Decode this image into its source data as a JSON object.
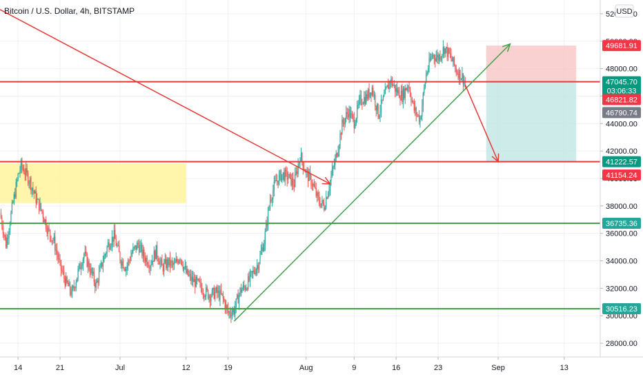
{
  "title": "Bitcoin / U.S. Dollar, 4h, BITSTAMP",
  "currency_button": "USD",
  "colors": {
    "up": "#26a69a",
    "down": "#ef5350",
    "red_line": "#e53935",
    "green_line": "#43a047",
    "yellow_zone": "#fff59d",
    "stop_zone": "#f8c6c6",
    "target_zone": "#bfe6e3",
    "grid": "#eef0f3"
  },
  "chart_data": {
    "type": "candlestick",
    "title": "Bitcoin / U.S. Dollar, 4h, BITSTAMP",
    "ylim": [
      27000,
      53000
    ],
    "y_ticks": [
      "28000.00",
      "30000.00",
      "32000.00",
      "34000.00",
      "36000.00",
      "38000.00",
      "40000.00",
      "42000.00",
      "44000.00",
      "46000.00",
      "48000.00",
      "50000.00",
      "52000.00"
    ],
    "y_tick_values": [
      28000,
      30000,
      32000,
      34000,
      36000,
      38000,
      40000,
      42000,
      44000,
      46000,
      48000,
      50000,
      52000
    ],
    "x_ticks": [
      "14",
      "21",
      "Jul",
      "12",
      "19",
      "Aug",
      "9",
      "16",
      "23",
      "Sep",
      "13"
    ],
    "x_tick_days": [
      0,
      7,
      17,
      28,
      35,
      48,
      56,
      63,
      70,
      80,
      91
    ],
    "x_domain_days": [
      -3,
      97
    ],
    "closes": [
      [
        -3,
        37500
      ],
      [
        -2,
        35200
      ],
      [
        -1,
        37800
      ],
      [
        0,
        40200
      ],
      [
        0.5,
        40900
      ],
      [
        1,
        40600
      ],
      [
        2,
        39800
      ],
      [
        3,
        38500
      ],
      [
        4,
        37600
      ],
      [
        5,
        36200
      ],
      [
        6,
        35400
      ],
      [
        7,
        33600
      ],
      [
        8,
        32400
      ],
      [
        9,
        31600
      ],
      [
        10,
        33200
      ],
      [
        11,
        34500
      ],
      [
        12,
        33400
      ],
      [
        13,
        32200
      ],
      [
        14,
        33800
      ],
      [
        15,
        35200
      ],
      [
        16,
        35800
      ],
      [
        17,
        34200
      ],
      [
        18,
        33500
      ],
      [
        19,
        34600
      ],
      [
        20,
        35200
      ],
      [
        21,
        34300
      ],
      [
        22,
        33800
      ],
      [
        23,
        34700
      ],
      [
        24,
        33500
      ],
      [
        25,
        33900
      ],
      [
        26,
        33600
      ],
      [
        27,
        34400
      ],
      [
        28,
        33100
      ],
      [
        29,
        32600
      ],
      [
        30,
        32300
      ],
      [
        31,
        31800
      ],
      [
        32,
        31500
      ],
      [
        33,
        31700
      ],
      [
        34,
        31400
      ],
      [
        35,
        30200
      ],
      [
        36,
        30400
      ],
      [
        37,
        31800
      ],
      [
        38,
        32200
      ],
      [
        39,
        33000
      ],
      [
        40,
        33800
      ],
      [
        41,
        35400
      ],
      [
        42,
        38500
      ],
      [
        43,
        39800
      ],
      [
        44,
        40300
      ],
      [
        45,
        40100
      ],
      [
        46,
        39600
      ],
      [
        47,
        41700
      ],
      [
        48,
        40400
      ],
      [
        49,
        39700
      ],
      [
        50,
        38400
      ],
      [
        51,
        38000
      ],
      [
        52,
        39800
      ],
      [
        53,
        41600
      ],
      [
        54,
        43900
      ],
      [
        55,
        44900
      ],
      [
        56,
        44100
      ],
      [
        57,
        45700
      ],
      [
        58,
        45900
      ],
      [
        59,
        46600
      ],
      [
        60,
        44700
      ],
      [
        61,
        45900
      ],
      [
        62,
        47200
      ],
      [
        63,
        46400
      ],
      [
        64,
        46000
      ],
      [
        65,
        46900
      ],
      [
        66,
        45000
      ],
      [
        67,
        44300
      ],
      [
        68,
        47600
      ],
      [
        69,
        49000
      ],
      [
        70,
        48800
      ],
      [
        71,
        49500
      ],
      [
        72,
        48900
      ],
      [
        73,
        47900
      ],
      [
        74,
        47400
      ],
      [
        74.5,
        47000
      ]
    ],
    "annotations": {
      "horizontal_lines": [
        {
          "price": 47045.7,
          "color": "red"
        },
        {
          "price": 41222.57,
          "color": "red"
        },
        {
          "price": 36735.36,
          "color": "green"
        },
        {
          "price": 30516.23,
          "color": "green"
        }
      ],
      "yellow_zone": {
        "from_day": -3,
        "to_day": 28,
        "top": 41100,
        "bottom": 38200
      },
      "descending_red_trendline": {
        "from": [
          -3,
          52300
        ],
        "to": [
          52,
          39600
        ]
      },
      "ascending_green_trendline": {
        "from": [
          36,
          29600
        ],
        "to": [
          82,
          49800
        ]
      },
      "short_position": {
        "from_day": 78,
        "to_day": 93,
        "entry": 47045.7,
        "stop": 49681.91,
        "target": 41222.57
      },
      "red_projection": {
        "from": [
          74.5,
          46821.82
        ],
        "to": [
          80,
          41222.57
        ]
      }
    },
    "price_tags": [
      {
        "label": "49681.91",
        "price": 49681.91,
        "color": "#f23645"
      },
      {
        "label": "47045.70",
        "price": 47045.7,
        "color": "#089981"
      },
      {
        "label": "03:06:33",
        "price": 46400,
        "color": "#089981"
      },
      {
        "label": "46821.82",
        "price": 45750,
        "color": "#f23645"
      },
      {
        "label": "46790.74",
        "price": 44800,
        "color": "#787b86"
      },
      {
        "label": "41222.57",
        "price": 41222.57,
        "color": "#089981"
      },
      {
        "label": "41154.24",
        "price": 40250,
        "color": "#f23645"
      },
      {
        "label": "36735.36",
        "price": 36735.36,
        "color": "#26a69a"
      },
      {
        "label": "30516.23",
        "price": 30516.23,
        "color": "#26a69a"
      }
    ]
  }
}
